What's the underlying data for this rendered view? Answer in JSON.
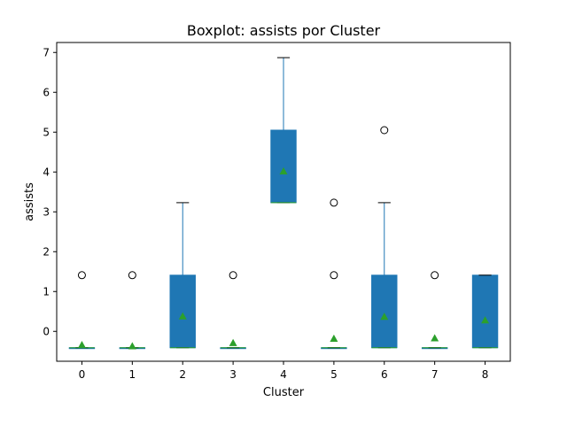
{
  "chart_data": {
    "type": "boxplot",
    "title": "Boxplot: assists por Cluster",
    "xlabel": "Cluster",
    "ylabel": "assists",
    "categories": [
      "0",
      "1",
      "2",
      "3",
      "4",
      "5",
      "6",
      "7",
      "8"
    ],
    "ylim": [
      -0.75,
      7.25
    ],
    "yticks": [
      0,
      1,
      2,
      3,
      4,
      5,
      6,
      7
    ],
    "grid": false,
    "boxes": [
      {
        "category": "0",
        "whisker_low": -0.41,
        "q1": -0.41,
        "median": -0.41,
        "q3": -0.41,
        "whisker_high": -0.41,
        "mean": -0.34,
        "fliers": [
          1.41
        ]
      },
      {
        "category": "1",
        "whisker_low": -0.41,
        "q1": -0.41,
        "median": -0.41,
        "q3": -0.41,
        "whisker_high": -0.41,
        "mean": -0.37,
        "fliers": [
          1.41
        ]
      },
      {
        "category": "2",
        "whisker_low": -0.41,
        "q1": -0.41,
        "median": -0.41,
        "q3": 1.41,
        "whisker_high": 3.23,
        "mean": 0.38,
        "fliers": []
      },
      {
        "category": "3",
        "whisker_low": -0.41,
        "q1": -0.41,
        "median": -0.41,
        "q3": -0.41,
        "whisker_high": -0.41,
        "mean": -0.29,
        "fliers": [
          1.41
        ]
      },
      {
        "category": "4",
        "whisker_low": 3.23,
        "q1": 3.23,
        "median": 3.23,
        "q3": 5.05,
        "whisker_high": 6.87,
        "mean": 4.02,
        "fliers": []
      },
      {
        "category": "5",
        "whisker_low": -0.41,
        "q1": -0.41,
        "median": -0.41,
        "q3": -0.41,
        "whisker_high": -0.41,
        "mean": -0.18,
        "fliers": [
          1.41,
          3.23
        ]
      },
      {
        "category": "6",
        "whisker_low": -0.41,
        "q1": -0.41,
        "median": -0.41,
        "q3": 1.41,
        "whisker_high": 3.23,
        "mean": 0.37,
        "fliers": [
          5.05
        ]
      },
      {
        "category": "7",
        "whisker_low": -0.41,
        "q1": -0.41,
        "median": -0.41,
        "q3": -0.41,
        "whisker_high": -0.41,
        "mean": -0.17,
        "fliers": [
          1.41
        ]
      },
      {
        "category": "8",
        "whisker_low": -0.41,
        "q1": -0.41,
        "median": -0.41,
        "q3": 1.41,
        "whisker_high": 1.41,
        "mean": 0.28,
        "fliers": []
      }
    ],
    "colors": {
      "box_fill": "#1f77b4",
      "median": "#2ca02c",
      "mean_marker": "#2ca02c",
      "whisker": "#1f77b4",
      "cap": "#000000",
      "flier": "#000000"
    }
  }
}
